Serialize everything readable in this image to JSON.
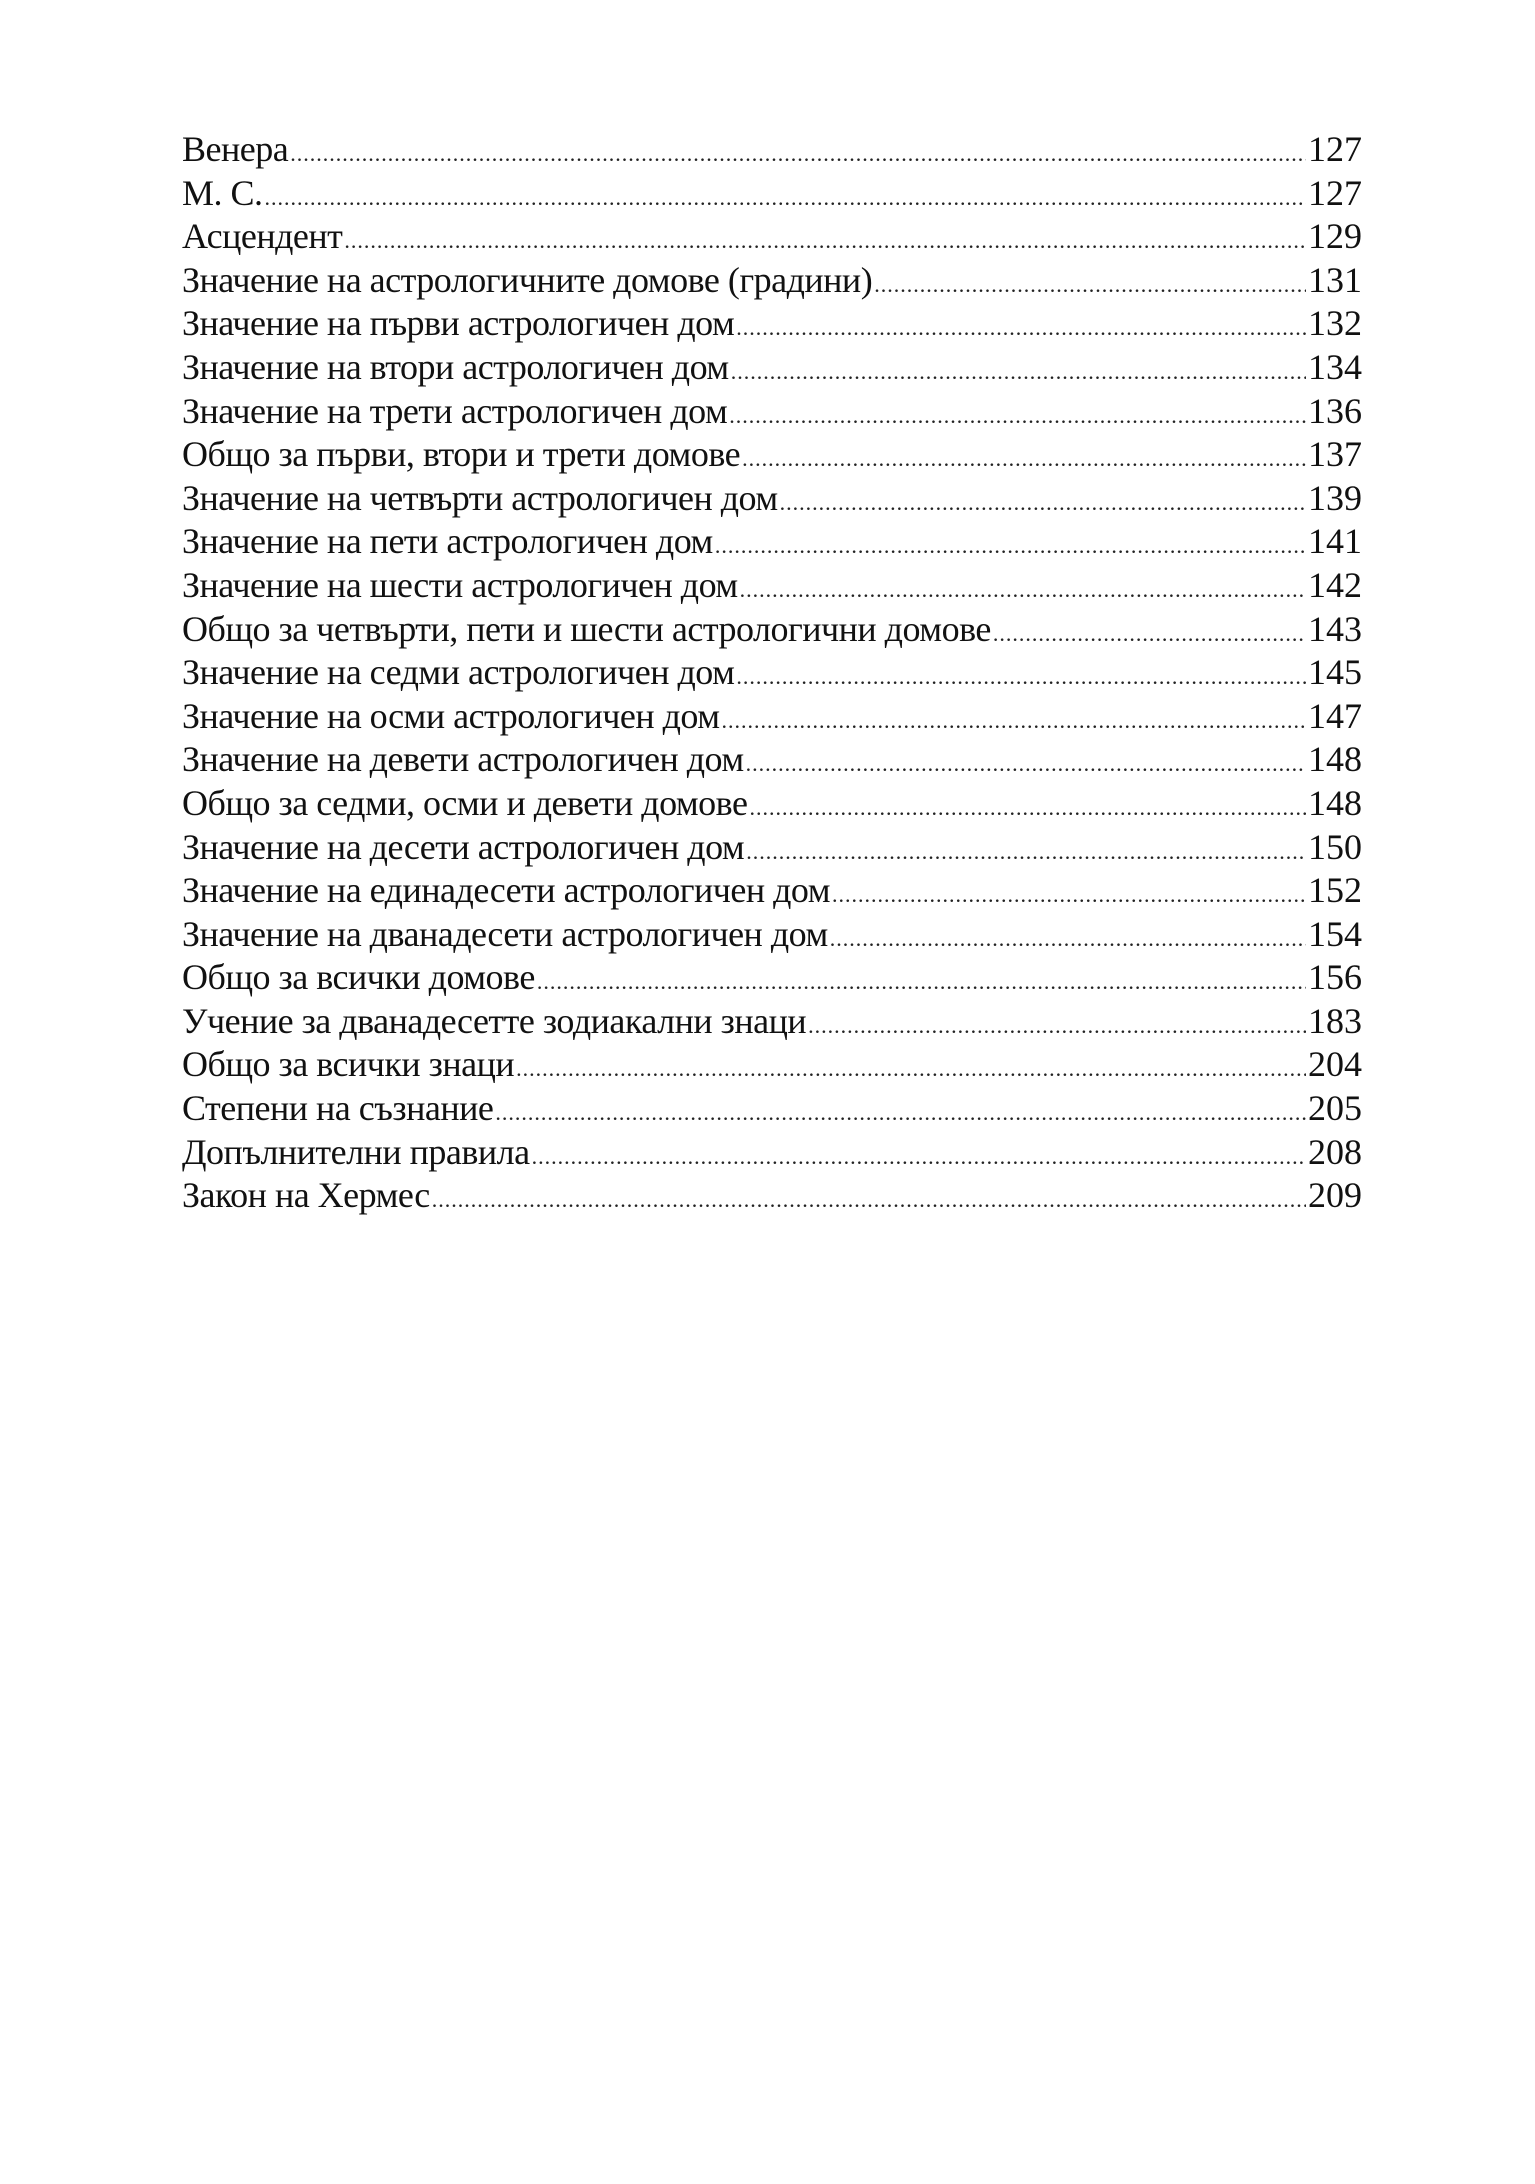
{
  "toc": [
    {
      "title": "Венера",
      "page": "127"
    },
    {
      "title": "М. С.",
      "page": "127"
    },
    {
      "title": "Асцендент",
      "page": "129"
    },
    {
      "title": "Значение на астрологичните домове (градини)",
      "page": "131"
    },
    {
      "title": "Значение на първи астрологичен дом",
      "page": "132"
    },
    {
      "title": "Значение на втори астрологичен дом",
      "page": "134"
    },
    {
      "title": "Значение на трети астрологичен дом",
      "page": "136"
    },
    {
      "title": "Общо за първи, втори и трети домове",
      "page": "137"
    },
    {
      "title": "Значение на четвърти астрологичен дом",
      "page": "139"
    },
    {
      "title": "Значение на пети астрологичен дом",
      "page": "141"
    },
    {
      "title": "Значение на шести астрологичен дом",
      "page": "142"
    },
    {
      "title": "Общо за четвърти, пети и шести астрологични домове",
      "page": "143"
    },
    {
      "title": "Значение на седми астрологичен дом",
      "page": "145"
    },
    {
      "title": "Значение на осми астрологичен дом",
      "page": "147"
    },
    {
      "title": "Значение на девети астрологичен дом",
      "page": "148"
    },
    {
      "title": "Общо за седми, осми и девети домове",
      "page": "148"
    },
    {
      "title": "Значение на десети астрологичен дом",
      "page": "150"
    },
    {
      "title": "Значение на единадесети астрологичен дом",
      "page": "152"
    },
    {
      "title": "Значение на дванадесети астрологичен дом",
      "page": "154"
    },
    {
      "title": "Общо за всички домове",
      "page": "156"
    },
    {
      "title": "Учение за дванадесетте зодиакални знаци",
      "page": "183"
    },
    {
      "title": "Общо за всички знаци",
      "page": "204"
    },
    {
      "title": "Степени на съзнание",
      "page": "205"
    },
    {
      "title": "Допълнителни правила",
      "page": "208"
    },
    {
      "title": "Закон на Хермес",
      "page": "209"
    }
  ]
}
